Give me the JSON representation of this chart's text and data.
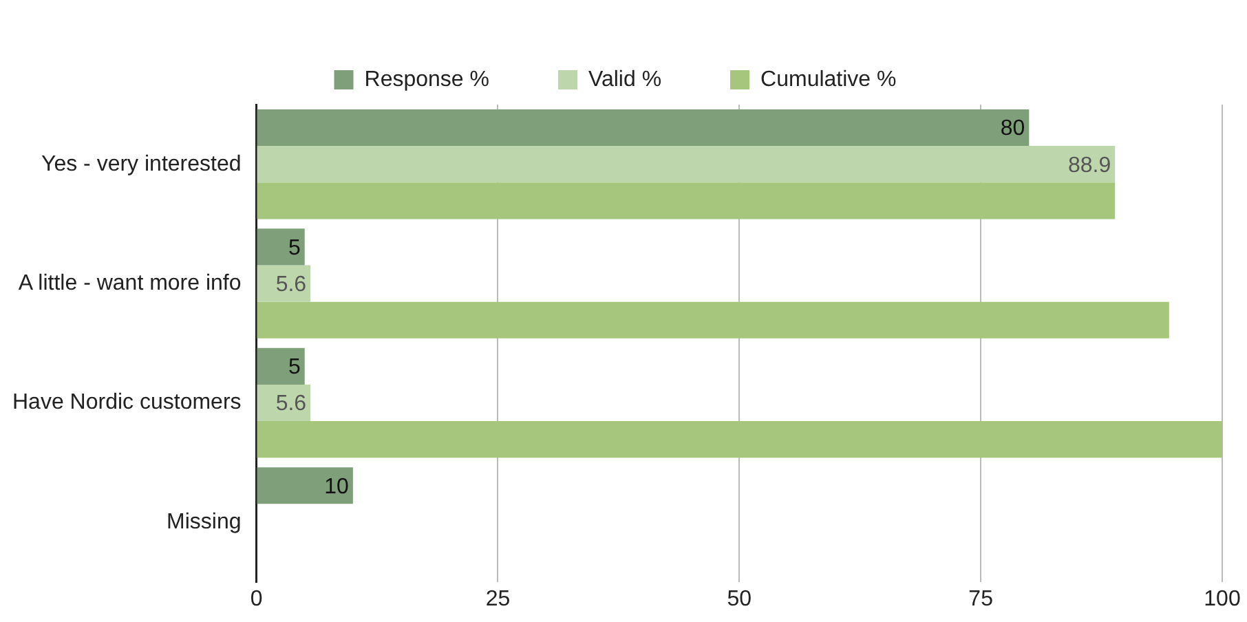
{
  "chart_data": {
    "type": "bar",
    "orientation": "horizontal",
    "categories": [
      "Yes - very interested",
      "A little - want more info",
      "Have Nordic customers",
      "Missing"
    ],
    "series": [
      {
        "name": "Response %",
        "color": "#7f9f7a",
        "values": [
          80,
          5,
          5,
          10
        ],
        "value_labels": [
          "80",
          "5",
          "5",
          "10"
        ]
      },
      {
        "name": "Valid %",
        "color": "#bdd6ac",
        "values": [
          88.9,
          5.6,
          5.6,
          null
        ],
        "value_labels": [
          "88.9",
          "5.6",
          "5.6",
          null
        ]
      },
      {
        "name": "Cumulative %",
        "color": "#a7c67d",
        "values": [
          88.9,
          94.5,
          100,
          null
        ]
      }
    ],
    "xlim": [
      0,
      100
    ],
    "xticks": [
      0,
      25,
      50,
      75,
      100
    ],
    "grid": "x",
    "legend": "top"
  }
}
